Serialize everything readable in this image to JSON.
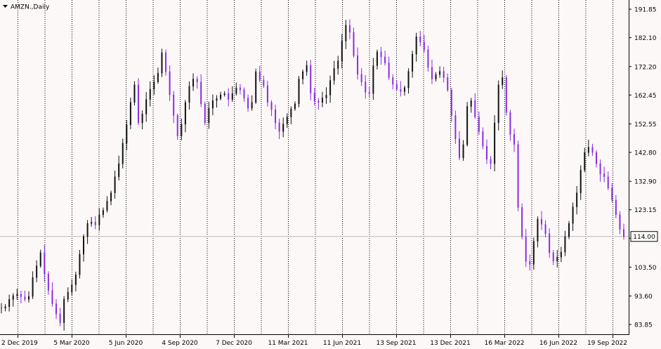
{
  "window": {
    "title": "AMZN.,Daily",
    "menu_icon": "triangle-down-icon"
  },
  "colors": {
    "background": "#fdf8f8",
    "axis": "#000000",
    "grid": "#000000",
    "bull": "#111111",
    "bear": "#8a2be2",
    "price_line": "#b9b9b9",
    "price_label_bg": "#ffffff",
    "price_label_fg": "#000000"
  },
  "chart_data": {
    "type": "line",
    "title": "AMZN.,Daily",
    "xlabel": "",
    "ylabel": "",
    "ylim": [
      80.5,
      195.0
    ],
    "grid": "vertical dotted",
    "y_ticks": [
      "191.85",
      "182.10",
      "172.20",
      "162.45",
      "152.55",
      "142.80",
      "132.90",
      "123.15",
      "113.40",
      "103.50",
      "93.60",
      "83.85"
    ],
    "x_ticks": [
      "2 Dec 2019",
      "5 Mar 2020",
      "5 Jun 2020",
      "4 Sep 2020",
      "7 Dec 2020",
      "11 Mar 2021",
      "11 Jun 2021",
      "13 Sep 2021",
      "13 Dec 2021",
      "16 Mar 2022",
      "16 Jun 2022",
      "19 Sep 2022"
    ],
    "current_price": "114.00",
    "series": [
      {
        "values": [
          89.5,
          90.0,
          92.5,
          93.8,
          94.2,
          93.4,
          92.5,
          93.5,
          100.0,
          104.0,
          108.5,
          101.2,
          95.6,
          91.0,
          87.5,
          84.5,
          92.6,
          95.0,
          97.5,
          101.0,
          108.0,
          114.0,
          118.5,
          119.0,
          118.0,
          121.5,
          123.0,
          126.2,
          129.0,
          134.5,
          139.0,
          146.0,
          152.3,
          160.0,
          166.0,
          153.0,
          156.0,
          161.0,
          164.5,
          167.0,
          170.0,
          177.0,
          170.5,
          162.6,
          155.5,
          148.5,
          152.5,
          160.0,
          165.5,
          168.0,
          167.0,
          159.5,
          153.0,
          158.0,
          160.6,
          161.3,
          162.6,
          163.0,
          161.0,
          163.0,
          165.0,
          164.3,
          161.5,
          158.0,
          160.0,
          170.5,
          167.6,
          165.7,
          160.0,
          157.5,
          153.0,
          150.0,
          152.6,
          155.0,
          157.8,
          159.5,
          168.0,
          170.5,
          172.7,
          163.2,
          160.5,
          160.0,
          161.5,
          162.5,
          167.5,
          171.6,
          174.2,
          181.0,
          186.4,
          184.0,
          176.0,
          169.6,
          167.0,
          163.5,
          163.0,
          172.6,
          177.3,
          175.6,
          173.5,
          168.5,
          166.2,
          164.5,
          163.7,
          165.0,
          170.6,
          176.5,
          182.5,
          180.6,
          178.0,
          172.0,
          168.0,
          169.5,
          170.6,
          168.5,
          164.2,
          155.5,
          147.5,
          141.0,
          145.5,
          158.6,
          160.6,
          155.0,
          150.0,
          145.0,
          140.5,
          139.0,
          153.0,
          166.0,
          168.5,
          156.5,
          149.0,
          145.6,
          124.0,
          114.0,
          105.5,
          104.5,
          112.4,
          120.0,
          118.2,
          115.0,
          108.5,
          105.6,
          107.0,
          108.7,
          114.0,
          118.5,
          124.2,
          129.0,
          136.8,
          142.8,
          144.6,
          142.8,
          139.0,
          135.5,
          134.5,
          130.6,
          126.5,
          121.5,
          116.5,
          114.0
        ]
      }
    ]
  }
}
